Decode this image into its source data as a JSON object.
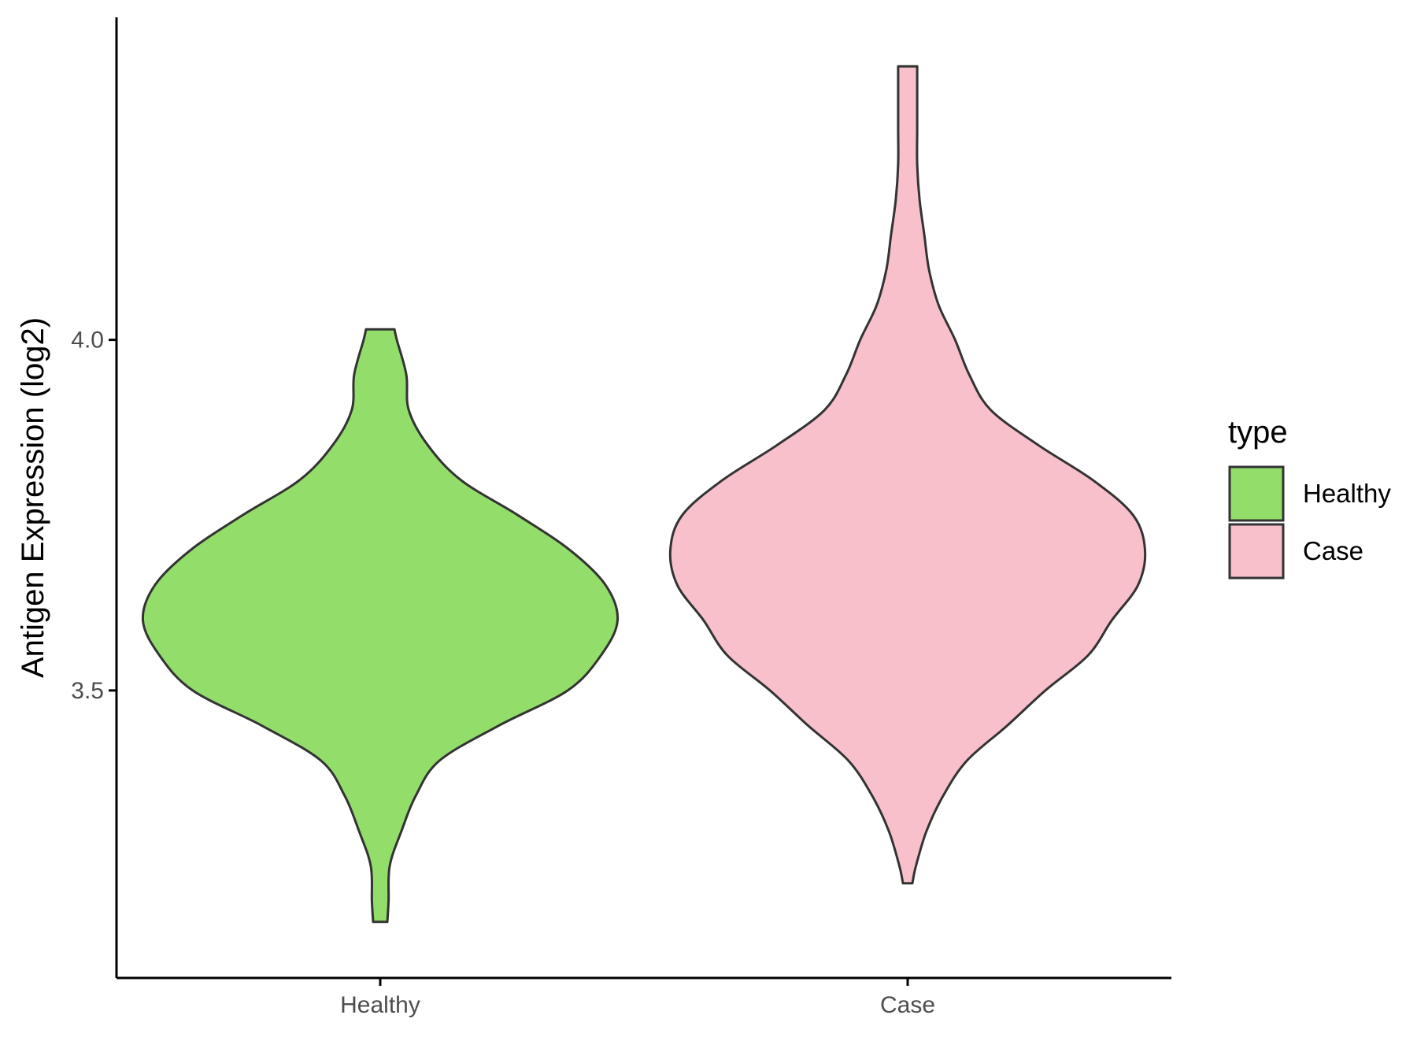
{
  "chart_data": {
    "type": "violin",
    "title": "",
    "xlabel": "",
    "ylabel": "Antigen Expression (log2)",
    "categories": [
      "Healthy",
      "Case"
    ],
    "y_ticks": [
      "3.5",
      "4.0"
    ],
    "ylim": [
      3.09,
      4.46
    ],
    "grid": false,
    "legend": {
      "title": "type",
      "position": "right",
      "entries": [
        {
          "label": "Healthy",
          "color": "#93dd6b"
        },
        {
          "label": "Case",
          "color": "#f7c0cb"
        }
      ]
    },
    "series": [
      {
        "name": "Healthy",
        "color": "#93dd6b",
        "y_min": 3.17,
        "y_max": 4.015,
        "density_profile": [
          [
            3.17,
            0.03
          ],
          [
            3.2,
            0.035
          ],
          [
            3.25,
            0.04
          ],
          [
            3.3,
            0.09
          ],
          [
            3.35,
            0.15
          ],
          [
            3.4,
            0.25
          ],
          [
            3.45,
            0.5
          ],
          [
            3.5,
            0.79
          ],
          [
            3.55,
            0.93
          ],
          [
            3.6,
            1.0
          ],
          [
            3.65,
            0.95
          ],
          [
            3.7,
            0.8
          ],
          [
            3.75,
            0.58
          ],
          [
            3.8,
            0.34
          ],
          [
            3.85,
            0.2
          ],
          [
            3.9,
            0.12
          ],
          [
            3.95,
            0.11
          ],
          [
            4.0,
            0.07
          ],
          [
            4.015,
            0.06
          ]
        ]
      },
      {
        "name": "Case",
        "color": "#f7c0cb",
        "y_min": 3.225,
        "y_max": 4.39,
        "density_profile": [
          [
            3.225,
            0.02
          ],
          [
            3.25,
            0.035
          ],
          [
            3.3,
            0.08
          ],
          [
            3.35,
            0.15
          ],
          [
            3.4,
            0.25
          ],
          [
            3.45,
            0.42
          ],
          [
            3.5,
            0.58
          ],
          [
            3.55,
            0.76
          ],
          [
            3.6,
            0.86
          ],
          [
            3.65,
            0.97
          ],
          [
            3.7,
            1.0
          ],
          [
            3.75,
            0.95
          ],
          [
            3.8,
            0.78
          ],
          [
            3.85,
            0.55
          ],
          [
            3.9,
            0.35
          ],
          [
            3.95,
            0.26
          ],
          [
            4.0,
            0.2
          ],
          [
            4.05,
            0.13
          ],
          [
            4.1,
            0.09
          ],
          [
            4.15,
            0.07
          ],
          [
            4.2,
            0.05
          ],
          [
            4.25,
            0.04
          ],
          [
            4.3,
            0.04
          ],
          [
            4.35,
            0.04
          ],
          [
            4.39,
            0.04
          ]
        ]
      }
    ]
  }
}
